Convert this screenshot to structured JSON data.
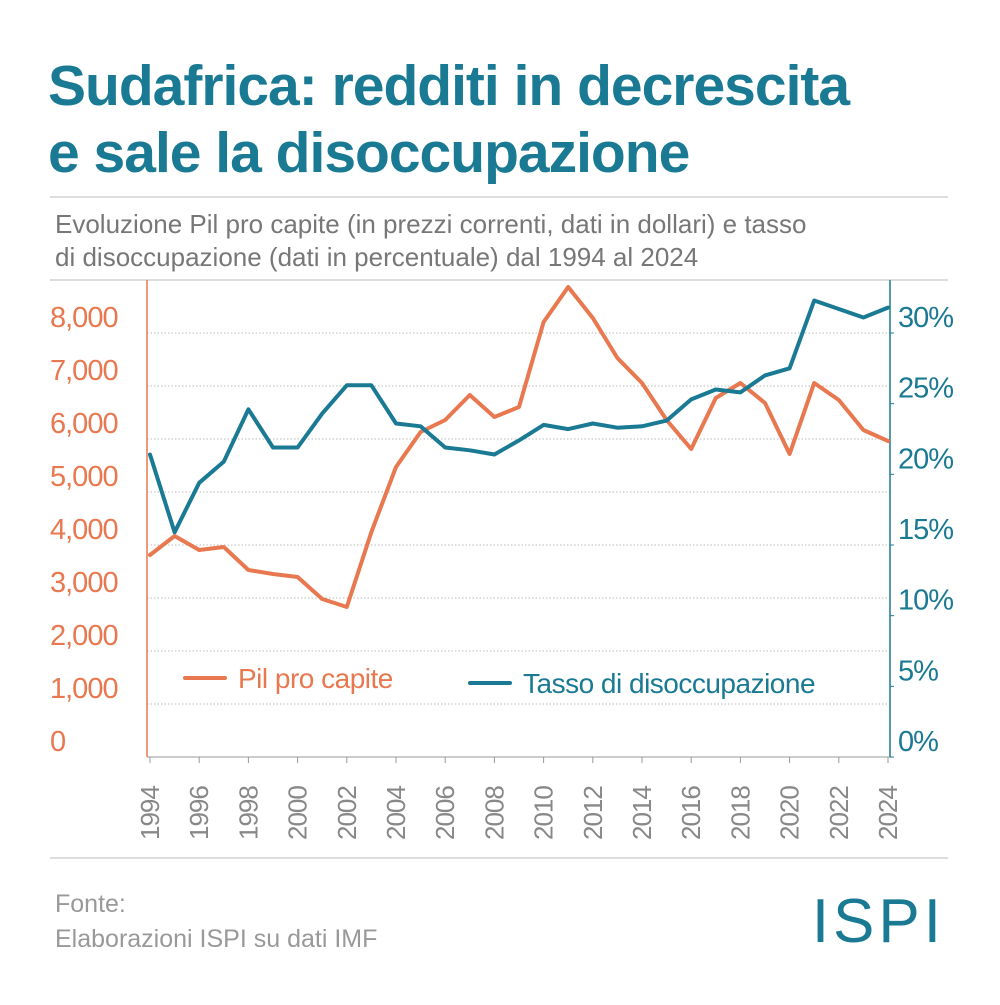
{
  "chart_data": {
    "type": "line",
    "title": [
      "Sudafrica: redditi in decrescita",
      "e sale la disoccupazione"
    ],
    "subtitle": [
      "Evoluzione Pil pro capite (in prezzi correnti, dati in dollari) e tasso",
      "di disoccupazione (dati in percentuale) dal 1994 al 2024"
    ],
    "x": [
      1994,
      1995,
      1996,
      1997,
      1998,
      1999,
      2000,
      2001,
      2002,
      2003,
      2004,
      2005,
      2006,
      2007,
      2008,
      2009,
      2010,
      2011,
      2012,
      2013,
      2014,
      2015,
      2016,
      2017,
      2018,
      2019,
      2020,
      2021,
      2022,
      2023,
      2024
    ],
    "xlim": [
      1994,
      2024
    ],
    "xticks": [
      1994,
      1996,
      1998,
      2000,
      2002,
      2004,
      2006,
      2008,
      2010,
      2012,
      2014,
      2016,
      2018,
      2020,
      2022,
      2024
    ],
    "ylim": [
      0,
      9000
    ],
    "yticks": [
      0,
      {
        "value": 1000,
        "label": "1,000"
      },
      {
        "value": 2000,
        "label": "2,000"
      },
      {
        "value": 3000,
        "label": "3,000"
      },
      {
        "value": 4000,
        "label": "4,000"
      },
      {
        "value": 5000,
        "label": "5,000"
      },
      {
        "value": 6000,
        "label": "6,000"
      },
      {
        "value": 7000,
        "label": "7,000"
      },
      {
        "value": 8000,
        "label": "8,000"
      }
    ],
    "y2lim": [
      0,
      33.75
    ],
    "y2ticks": [
      {
        "value": 0,
        "label": "0%"
      },
      {
        "value": 5,
        "label": "5%"
      },
      {
        "value": 10,
        "label": "10%"
      },
      {
        "value": 15,
        "label": "15%"
      },
      {
        "value": 20,
        "label": "20%"
      },
      {
        "value": 25,
        "label": "25%"
      },
      {
        "value": 30,
        "label": "30%"
      }
    ],
    "grid": true,
    "series": [
      {
        "name": "Pil pro capite",
        "color": "#e8784f",
        "values": [
          3811,
          4170,
          3906,
          3962,
          3528,
          3453,
          3396,
          2981,
          2830,
          4245,
          5472,
          6132,
          6358,
          6830,
          6415,
          6604,
          8208,
          8868,
          8283,
          7528,
          7057,
          6358,
          5811,
          6774,
          7057,
          6679,
          5717,
          7057,
          6736,
          6170,
          5962
        ]
      },
      {
        "name": "Tasso di disoccupazione",
        "color": "#1a7a94",
        "axis": "y2",
        "values": [
          21.4,
          15.9,
          19.4,
          20.9,
          24.6,
          21.9,
          21.9,
          24.3,
          26.3,
          26.3,
          23.6,
          23.4,
          21.9,
          21.7,
          21.4,
          22.4,
          23.5,
          23.2,
          23.6,
          23.3,
          23.4,
          23.8,
          25.3,
          26.0,
          25.8,
          27.0,
          27.5,
          32.3,
          31.7,
          31.1,
          31.8
        ]
      }
    ],
    "source": [
      "Fonte:",
      "Elaborazioni ISPI su dati IMF"
    ],
    "logo": "ISPI"
  }
}
